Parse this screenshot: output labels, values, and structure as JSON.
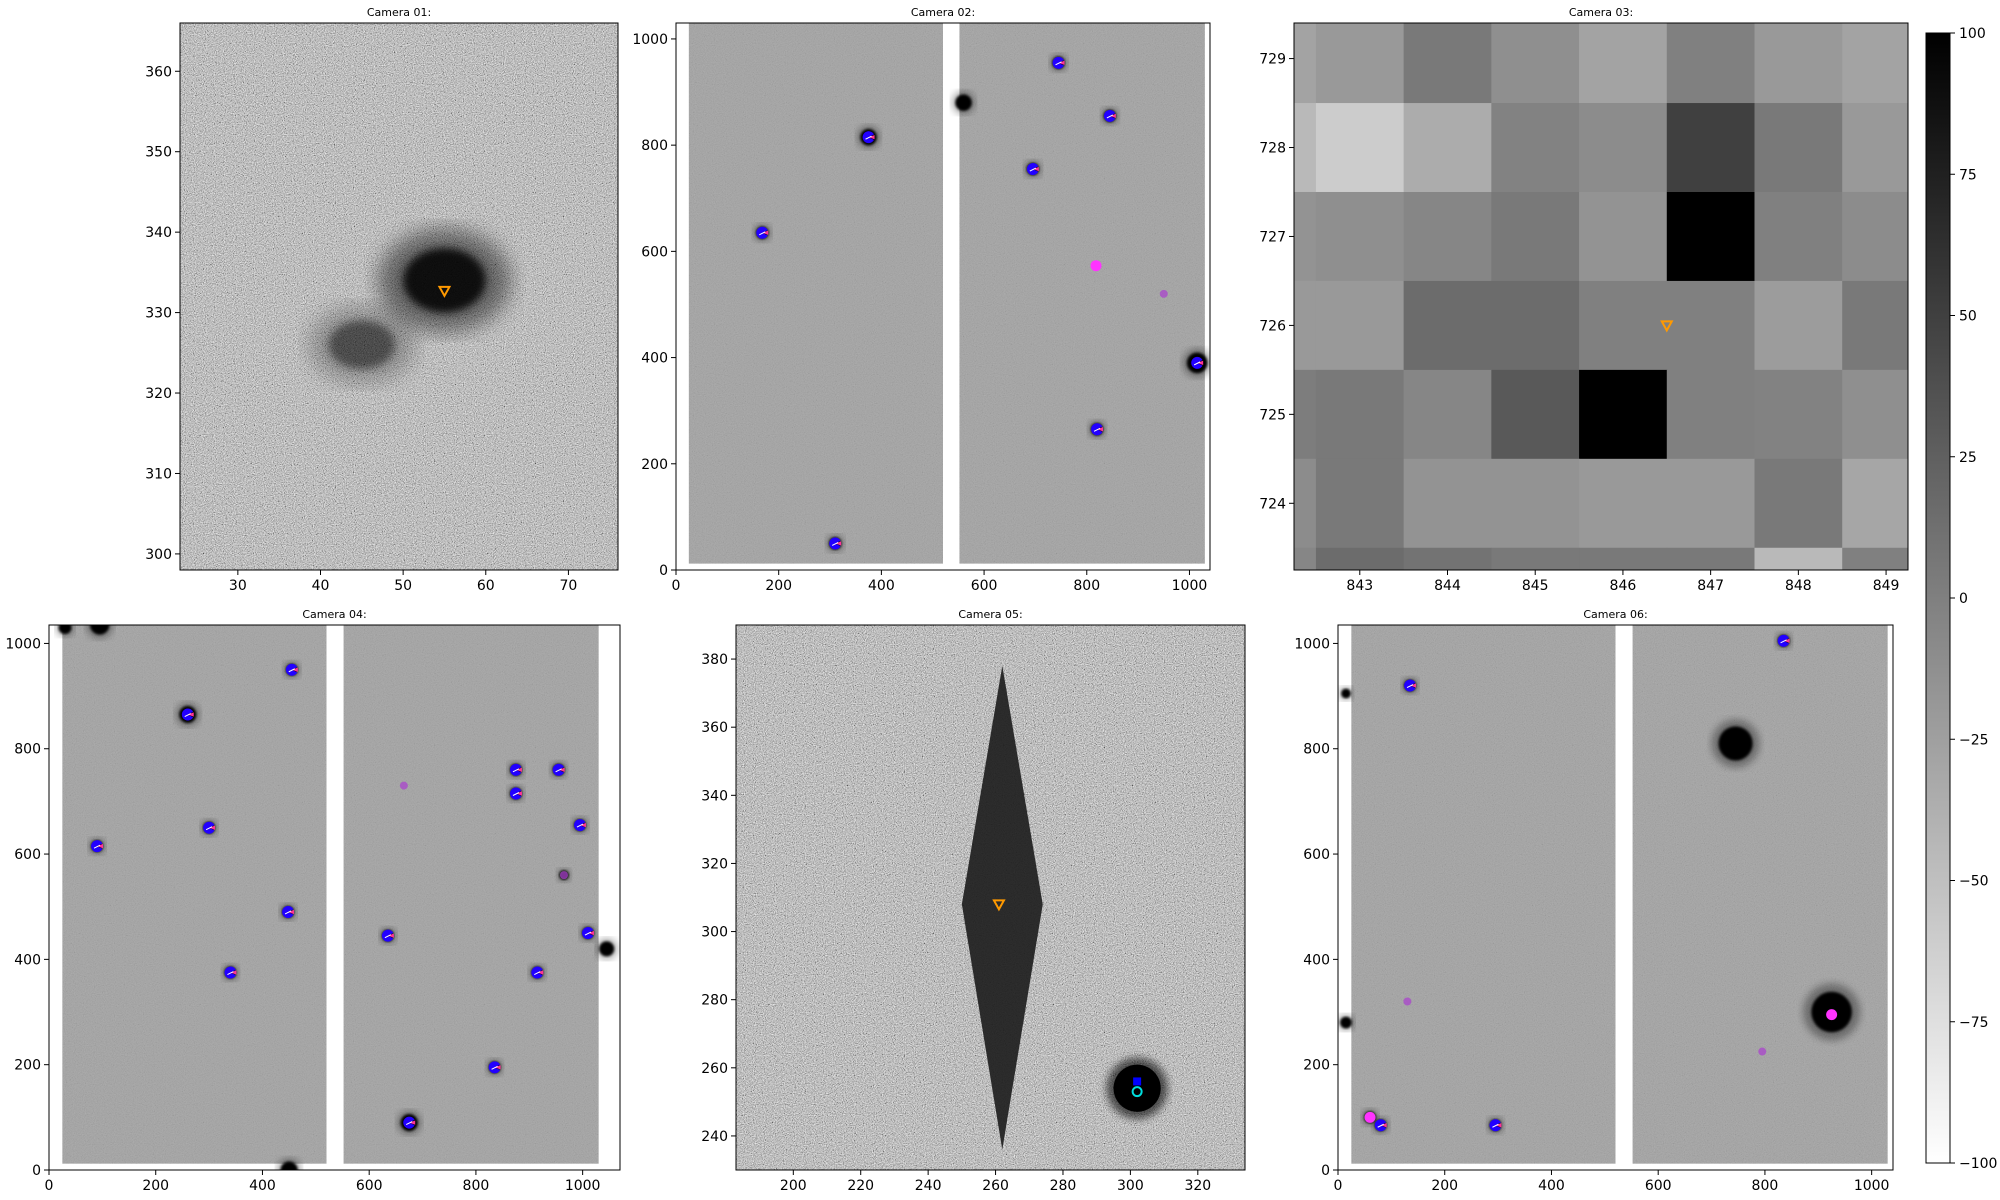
{
  "chart_data": [
    {
      "type": "image",
      "title": "Camera 01:",
      "xlim": [
        23,
        76
      ],
      "ylim": [
        298,
        366
      ],
      "xticks": [
        30,
        40,
        50,
        60,
        70
      ],
      "yticks": [
        300,
        310,
        320,
        330,
        340,
        350,
        360
      ],
      "background": "noise",
      "blobs": [
        {
          "x": 55,
          "y": 334,
          "sx": 5,
          "sy": 4,
          "amp": 0.85
        },
        {
          "x": 45,
          "y": 326,
          "sx": 4,
          "sy": 3,
          "amp": 0.45
        }
      ],
      "markers": [
        {
          "x": 55,
          "y": 332.7,
          "kind": "triangle-down",
          "color": "#ff9900"
        }
      ]
    },
    {
      "type": "image",
      "title": "Camera 02:",
      "xlim": [
        0,
        1040
      ],
      "ylim": [
        0,
        1030
      ],
      "xticks": [
        0,
        200,
        400,
        600,
        800,
        1000
      ],
      "yticks": [
        0,
        200,
        400,
        600,
        800,
        1000
      ],
      "background": "ccd",
      "chip_gaps": [
        [
          0,
          25
        ],
        [
          520,
          552
        ],
        [
          1030,
          1040
        ]
      ],
      "stars": [
        {
          "x": 375,
          "y": 815,
          "r": 16
        },
        {
          "x": 560,
          "y": 880,
          "r": 16
        },
        {
          "x": 1015,
          "y": 390,
          "r": 20
        },
        {
          "x": 168,
          "y": 635,
          "r": 12
        },
        {
          "x": 310,
          "y": 50,
          "r": 12
        },
        {
          "x": 745,
          "y": 955,
          "r": 12
        },
        {
          "x": 845,
          "y": 855,
          "r": 12
        },
        {
          "x": 695,
          "y": 755,
          "r": 12
        },
        {
          "x": 820,
          "y": 265,
          "r": 12
        }
      ],
      "markers": [
        {
          "x": 375,
          "y": 815,
          "kind": "pac"
        },
        {
          "x": 168,
          "y": 635,
          "kind": "pac"
        },
        {
          "x": 310,
          "y": 50,
          "kind": "pac"
        },
        {
          "x": 745,
          "y": 955,
          "kind": "pac"
        },
        {
          "x": 845,
          "y": 855,
          "kind": "pac"
        },
        {
          "x": 695,
          "y": 755,
          "kind": "pac"
        },
        {
          "x": 1015,
          "y": 390,
          "kind": "pac"
        },
        {
          "x": 820,
          "y": 265,
          "kind": "pac"
        },
        {
          "x": 818,
          "y": 573,
          "kind": "magenta-dot"
        },
        {
          "x": 950,
          "y": 520,
          "kind": "purple-dot"
        }
      ]
    },
    {
      "type": "pixel-grid",
      "title": "Camera 03:",
      "xlim": [
        842.25,
        849.25
      ],
      "ylim": [
        723.25,
        729.4
      ],
      "xticks": [
        843,
        844,
        845,
        846,
        847,
        848,
        849
      ],
      "yticks": [
        724,
        725,
        726,
        727,
        728,
        729
      ],
      "col_edges": [
        842.25,
        842.5,
        843.5,
        844.5,
        845.5,
        846.5,
        847.5,
        848.5,
        849.25
      ],
      "row_edges": [
        729.4,
        728.5,
        727.5,
        726.5,
        725.5,
        724.5,
        723.5,
        723.25
      ],
      "pixels": [
        [
          -28,
          -20,
          5,
          -12,
          -28,
          0,
          -20,
          -28
        ],
        [
          -45,
          -60,
          -35,
          -2,
          -10,
          50,
          5,
          -20
        ],
        [
          -15,
          -12,
          -5,
          5,
          -15,
          100,
          0,
          -10
        ],
        [
          -20,
          -20,
          15,
          15,
          0,
          0,
          -22,
          5
        ],
        [
          2,
          5,
          -5,
          30,
          100,
          0,
          -2,
          -12
        ],
        [
          -10,
          5,
          -15,
          -15,
          -20,
          -20,
          5,
          -30
        ],
        [
          -5,
          15,
          10,
          5,
          5,
          5,
          -45,
          0
        ]
      ],
      "markers": [
        {
          "x": 846.5,
          "y": 726.0,
          "kind": "triangle-down",
          "color": "#ff9900"
        }
      ]
    },
    {
      "type": "image",
      "title": "Camera 04:",
      "xlim": [
        0,
        1070
      ],
      "ylim": [
        0,
        1035
      ],
      "xticks": [
        0,
        200,
        400,
        600,
        800,
        1000
      ],
      "yticks": [
        0,
        200,
        400,
        600,
        800,
        1000
      ],
      "background": "ccd",
      "chip_gaps": [
        [
          0,
          25
        ],
        [
          520,
          552
        ],
        [
          1030,
          1070
        ]
      ],
      "stars": [
        {
          "x": 30,
          "y": 1030,
          "r": 12
        },
        {
          "x": 95,
          "y": 1035,
          "r": 18
        },
        {
          "x": 260,
          "y": 865,
          "r": 16
        },
        {
          "x": 450,
          "y": 0,
          "r": 16
        },
        {
          "x": 1045,
          "y": 420,
          "r": 14
        },
        {
          "x": 675,
          "y": 90,
          "r": 16
        },
        {
          "x": 455,
          "y": 950,
          "r": 11
        },
        {
          "x": 90,
          "y": 615,
          "r": 11
        },
        {
          "x": 300,
          "y": 650,
          "r": 11
        },
        {
          "x": 448,
          "y": 490,
          "r": 11
        },
        {
          "x": 340,
          "y": 375,
          "r": 11
        },
        {
          "x": 635,
          "y": 445,
          "r": 11
        },
        {
          "x": 875,
          "y": 760,
          "r": 11
        },
        {
          "x": 875,
          "y": 715,
          "r": 11
        },
        {
          "x": 955,
          "y": 760,
          "r": 11
        },
        {
          "x": 995,
          "y": 655,
          "r": 11
        },
        {
          "x": 1010,
          "y": 450,
          "r": 11
        },
        {
          "x": 915,
          "y": 375,
          "r": 11
        },
        {
          "x": 835,
          "y": 195,
          "r": 11
        },
        {
          "x": 965,
          "y": 560,
          "r": 9
        }
      ],
      "markers": [
        {
          "x": 455,
          "y": 950,
          "kind": "pac"
        },
        {
          "x": 260,
          "y": 865,
          "kind": "pac"
        },
        {
          "x": 90,
          "y": 615,
          "kind": "pac"
        },
        {
          "x": 300,
          "y": 650,
          "kind": "pac"
        },
        {
          "x": 448,
          "y": 490,
          "kind": "pac"
        },
        {
          "x": 340,
          "y": 375,
          "kind": "pac"
        },
        {
          "x": 635,
          "y": 445,
          "kind": "pac"
        },
        {
          "x": 875,
          "y": 760,
          "kind": "pac"
        },
        {
          "x": 875,
          "y": 715,
          "kind": "pac"
        },
        {
          "x": 955,
          "y": 760,
          "kind": "pac"
        },
        {
          "x": 995,
          "y": 655,
          "kind": "pac"
        },
        {
          "x": 1010,
          "y": 450,
          "kind": "pac"
        },
        {
          "x": 915,
          "y": 375,
          "kind": "pac"
        },
        {
          "x": 835,
          "y": 195,
          "kind": "pac"
        },
        {
          "x": 675,
          "y": 90,
          "kind": "pac"
        },
        {
          "x": 665,
          "y": 730,
          "kind": "purple-dot"
        },
        {
          "x": 965,
          "y": 560,
          "kind": "purple-dot"
        }
      ]
    },
    {
      "type": "image",
      "title": "Camera 05:",
      "xlim": [
        183,
        334
      ],
      "ylim": [
        230,
        390
      ],
      "xticks": [
        200,
        220,
        240,
        260,
        280,
        300,
        320
      ],
      "yticks": [
        240,
        260,
        280,
        300,
        320,
        340,
        360,
        380
      ],
      "background": "noise",
      "diamond": {
        "cx": 262,
        "cy": 308,
        "halfw": 12,
        "top": 378,
        "bottom": 236
      },
      "stars": [
        {
          "x": 302,
          "y": 254,
          "r": 7
        }
      ],
      "markers": [
        {
          "x": 261,
          "y": 308,
          "kind": "triangle-down",
          "color": "#ff9900"
        },
        {
          "x": 302,
          "y": 256,
          "kind": "blue-square"
        },
        {
          "x": 302,
          "y": 253,
          "kind": "cyan-ring"
        }
      ]
    },
    {
      "type": "image",
      "title": "Camera 06:",
      "xlim": [
        0,
        1040
      ],
      "ylim": [
        0,
        1035
      ],
      "xticks": [
        0,
        200,
        400,
        600,
        800,
        1000
      ],
      "yticks": [
        0,
        200,
        400,
        600,
        800,
        1000
      ],
      "background": "ccd",
      "chip_gaps": [
        [
          0,
          25
        ],
        [
          520,
          552
        ],
        [
          1030,
          1040
        ]
      ],
      "stars": [
        {
          "x": 745,
          "y": 810,
          "r": 32
        },
        {
          "x": 925,
          "y": 300,
          "r": 38
        },
        {
          "x": 835,
          "y": 1005,
          "r": 11
        },
        {
          "x": 135,
          "y": 920,
          "r": 11
        },
        {
          "x": 295,
          "y": 85,
          "r": 11
        },
        {
          "x": 80,
          "y": 85,
          "r": 11
        },
        {
          "x": 60,
          "y": 100,
          "r": 11
        },
        {
          "x": 15,
          "y": 280,
          "r": 11
        },
        {
          "x": 15,
          "y": 905,
          "r": 9
        }
      ],
      "markers": [
        {
          "x": 835,
          "y": 1005,
          "kind": "pac"
        },
        {
          "x": 135,
          "y": 920,
          "kind": "pac"
        },
        {
          "x": 295,
          "y": 85,
          "kind": "pac"
        },
        {
          "x": 80,
          "y": 85,
          "kind": "pac"
        },
        {
          "x": 60,
          "y": 100,
          "kind": "magenta-dot"
        },
        {
          "x": 925,
          "y": 295,
          "kind": "magenta-dot"
        },
        {
          "x": 795,
          "y": 225,
          "kind": "purple-dot"
        },
        {
          "x": 130,
          "y": 320,
          "kind": "purple-dot"
        }
      ]
    }
  ],
  "colorbar": {
    "min": -100,
    "max": 100,
    "ticks": [
      100,
      75,
      50,
      25,
      0,
      -25,
      -50,
      -75,
      -100
    ],
    "tick_labels": [
      "100",
      "75",
      "50",
      "25",
      "0",
      "−25",
      "−50",
      "−75",
      "−100"
    ],
    "colormap": "gray_r"
  },
  "colors": {
    "triangle": "#ff9900",
    "pac_body": "#2200ff",
    "pac_mouth": "#ff3399",
    "magenta": "#ff33ff",
    "purple": "#aa44cc",
    "cyan": "#00dddd"
  }
}
